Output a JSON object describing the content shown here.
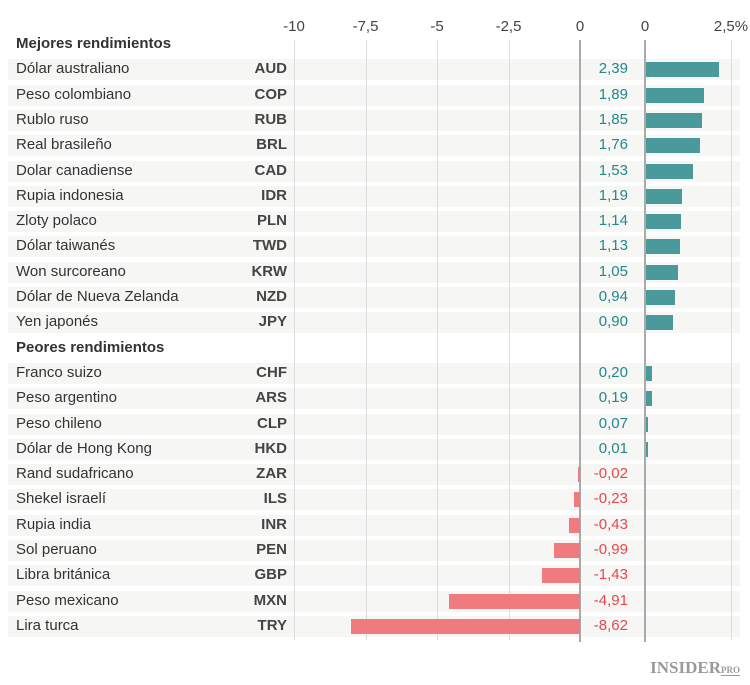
{
  "chart_data": {
    "type": "bar",
    "neg_ticks": [
      "-10",
      "-7,5",
      "-5",
      "-2,5",
      "0"
    ],
    "pos_ticks": [
      "0",
      "2,5%"
    ],
    "xlim": [
      -10,
      2.5
    ],
    "colors": {
      "positive": "#4a9a9b",
      "negative": "#f07b7e",
      "positive_text": "#22888a",
      "negative_text": "#e8474c"
    },
    "groups": [
      {
        "label": "Mejores rendimientos",
        "rows": [
          {
            "name": "Dólar australiano",
            "code": "AUD",
            "value": 2.39,
            "label": "2,39"
          },
          {
            "name": "Peso colombiano",
            "code": "COP",
            "value": 1.89,
            "label": "1,89"
          },
          {
            "name": "Rublo ruso",
            "code": "RUB",
            "value": 1.85,
            "label": "1,85"
          },
          {
            "name": "Real brasileño",
            "code": "BRL",
            "value": 1.76,
            "label": "1,76"
          },
          {
            "name": "Dolar canadiense",
            "code": "CAD",
            "value": 1.53,
            "label": "1,53"
          },
          {
            "name": "Rupia indonesia",
            "code": "IDR",
            "value": 1.19,
            "label": "1,19"
          },
          {
            "name": "Zloty polaco",
            "code": "PLN",
            "value": 1.14,
            "label": "1,14"
          },
          {
            "name": "Dólar taiwanés",
            "code": "TWD",
            "value": 1.13,
            "label": "1,13"
          },
          {
            "name": "Won surcoreano",
            "code": "KRW",
            "value": 1.05,
            "label": "1,05"
          },
          {
            "name": "Dólar de Nueva Zelanda",
            "code": "NZD",
            "value": 0.94,
            "label": "0,94"
          },
          {
            "name": "Yen japonés",
            "code": "JPY",
            "value": 0.9,
            "label": "0,90"
          }
        ]
      },
      {
        "label": "Peores rendimientos",
        "rows": [
          {
            "name": "Franco suizo",
            "code": "CHF",
            "value": 0.2,
            "label": "0,20"
          },
          {
            "name": "Peso argentino",
            "code": "ARS",
            "value": 0.19,
            "label": "0,19"
          },
          {
            "name": "Peso chileno",
            "code": "CLP",
            "value": 0.07,
            "label": "0,07"
          },
          {
            "name": "Dólar de Hong Kong",
            "code": "HKD",
            "value": 0.01,
            "label": "0,01"
          },
          {
            "name": "Rand sudafricano",
            "code": "ZAR",
            "value": -0.02,
            "label": "-0,02"
          },
          {
            "name": "Shekel israelí",
            "code": "ILS",
            "value": -0.23,
            "label": "-0,23"
          },
          {
            "name": "Rupia india",
            "code": "INR",
            "value": -0.43,
            "label": "-0,43"
          },
          {
            "name": "Sol peruano",
            "code": "PEN",
            "value": -0.99,
            "label": "-0,99"
          },
          {
            "name": "Libra británica",
            "code": "GBP",
            "value": -1.43,
            "label": "-1,43"
          },
          {
            "name": "Peso mexicano",
            "code": "MXN",
            "value": -4.91,
            "label": "-4,91"
          },
          {
            "name": "Lira turca",
            "code": "TRY",
            "value": -8.62,
            "label": "-8,62"
          }
        ]
      }
    ]
  },
  "logo": {
    "main": "INSIDER",
    "sup": "PRO"
  }
}
